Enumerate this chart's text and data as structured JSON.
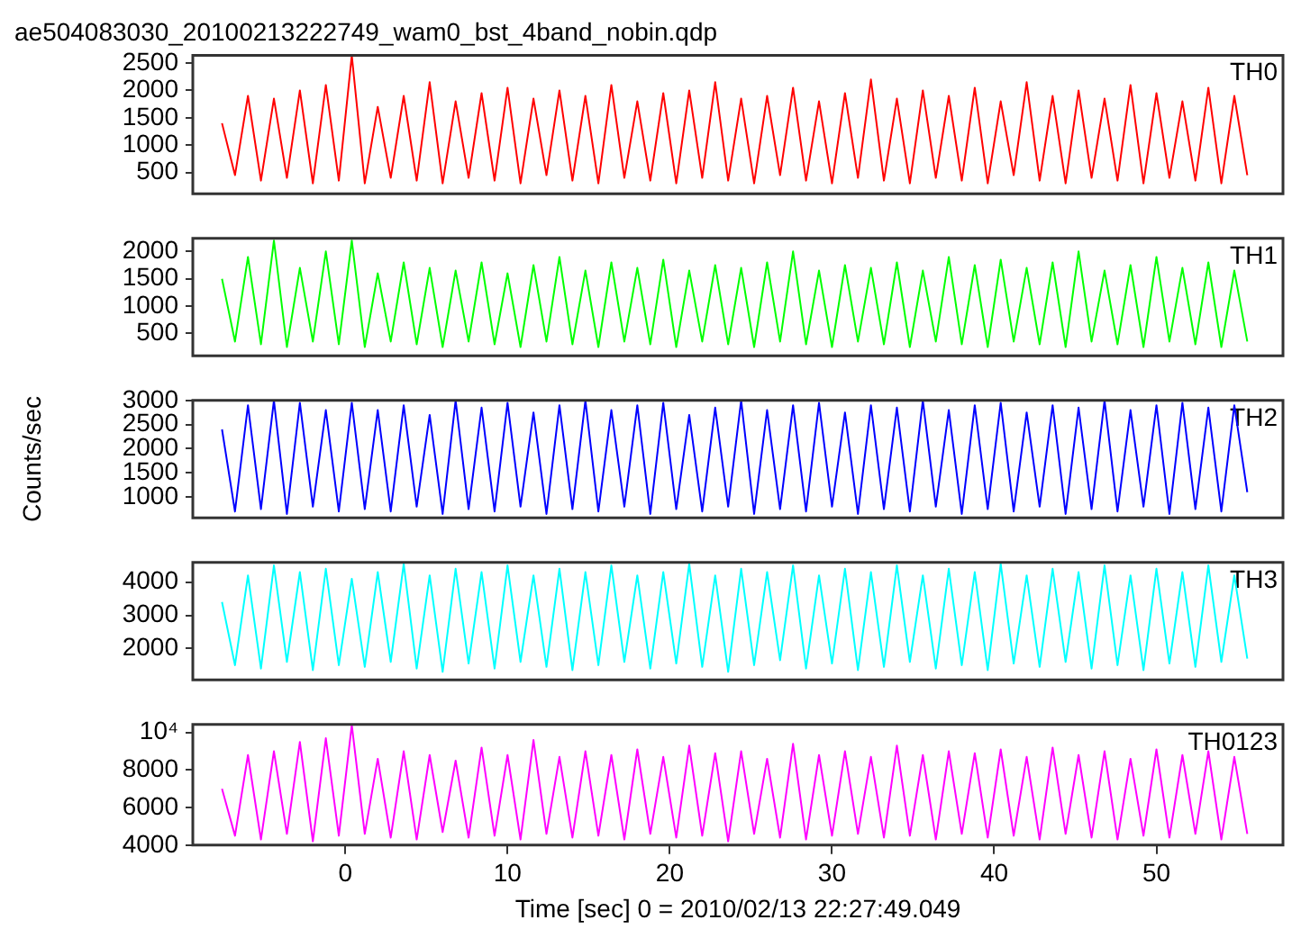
{
  "chart_data": [
    {
      "type": "line",
      "title": "ae504083030_20100213222749_wam0_bst_4band_nobin.qdp",
      "tick_labels": "y",
      "xlim": [
        -9.4,
        57.8
      ],
      "xticks": [
        0,
        10,
        20,
        30,
        40,
        50
      ],
      "ylim": [
        110,
        2640
      ],
      "yticks": [
        500,
        1000,
        1500,
        2000,
        2500
      ],
      "x": [
        -7.6,
        -6.8,
        -6,
        -5.2,
        -4.4,
        -3.6,
        -2.8,
        -2,
        -1.2,
        -0.4,
        0.4,
        1.2,
        2,
        2.8,
        3.6,
        4.4,
        5.2,
        6,
        6.8,
        7.6,
        8.4,
        9.2,
        10,
        10.8,
        11.6,
        12.4,
        13.2,
        14,
        14.8,
        15.6,
        16.4,
        17.2,
        18,
        18.8,
        19.6,
        20.4,
        21.2,
        22,
        22.8,
        23.6,
        24.4,
        25.2,
        26,
        26.8,
        27.6,
        28.4,
        29.2,
        30,
        30.8,
        31.6,
        32.4,
        33.2,
        34,
        34.8,
        35.6,
        36.4,
        37.2,
        38,
        38.8,
        39.6,
        40.4,
        41.2,
        42,
        42.8,
        43.6,
        44.4,
        45.2,
        46,
        46.8,
        47.6,
        48.4,
        49.2,
        50,
        50.8,
        51.6,
        52.4,
        53.2,
        54,
        54.8,
        55.6
      ],
      "series": [
        {
          "name": "TH0",
          "color": "#ff0000",
          "values": [
            1400,
            450,
            1900,
            350,
            1850,
            400,
            2000,
            300,
            2100,
            350,
            2640,
            300,
            1700,
            400,
            1900,
            350,
            2150,
            300,
            1800,
            400,
            1950,
            350,
            2050,
            300,
            1850,
            450,
            2000,
            350,
            1900,
            300,
            2100,
            400,
            1800,
            350,
            1950,
            300,
            2000,
            400,
            2150,
            350,
            1850,
            300,
            1900,
            450,
            2050,
            350,
            1800,
            300,
            1950,
            400,
            2200,
            350,
            1850,
            300,
            2000,
            400,
            1900,
            350,
            2050,
            300,
            1800,
            450,
            2150,
            350,
            1900,
            300,
            2000,
            400,
            1850,
            350,
            2100,
            300,
            1950,
            400,
            1800,
            350,
            2050,
            300,
            1900,
            450
          ]
        }
      ]
    },
    {
      "type": "line",
      "tick_labels": "y",
      "xlim": [
        -9.4,
        57.8
      ],
      "xticks": [
        0,
        10,
        20,
        30,
        40,
        50
      ],
      "ylim": [
        90,
        2240
      ],
      "yticks": [
        500,
        1000,
        1500,
        2000
      ],
      "x": [
        -7.6,
        -6.8,
        -6,
        -5.2,
        -4.4,
        -3.6,
        -2.8,
        -2,
        -1.2,
        -0.4,
        0.4,
        1.2,
        2,
        2.8,
        3.6,
        4.4,
        5.2,
        6,
        6.8,
        7.6,
        8.4,
        9.2,
        10,
        10.8,
        11.6,
        12.4,
        13.2,
        14,
        14.8,
        15.6,
        16.4,
        17.2,
        18,
        18.8,
        19.6,
        20.4,
        21.2,
        22,
        22.8,
        23.6,
        24.4,
        25.2,
        26,
        26.8,
        27.6,
        28.4,
        29.2,
        30,
        30.8,
        31.6,
        32.4,
        33.2,
        34,
        34.8,
        35.6,
        36.4,
        37.2,
        38,
        38.8,
        39.6,
        40.4,
        41.2,
        42,
        42.8,
        43.6,
        44.4,
        45.2,
        46,
        46.8,
        47.6,
        48.4,
        49.2,
        50,
        50.8,
        51.6,
        52.4,
        53.2,
        54,
        54.8,
        55.6
      ],
      "series": [
        {
          "name": "TH1",
          "color": "#00ff00",
          "values": [
            1500,
            350,
            1900,
            300,
            2200,
            250,
            1700,
            350,
            2000,
            300,
            2200,
            250,
            1600,
            350,
            1800,
            300,
            1700,
            250,
            1650,
            350,
            1800,
            300,
            1600,
            250,
            1750,
            350,
            1900,
            300,
            1650,
            250,
            1800,
            350,
            1700,
            300,
            1850,
            250,
            1650,
            350,
            1750,
            300,
            1700,
            250,
            1800,
            350,
            2000,
            300,
            1650,
            250,
            1750,
            350,
            1700,
            300,
            1800,
            250,
            1650,
            350,
            1900,
            300,
            1750,
            250,
            1850,
            350,
            1700,
            300,
            1800,
            250,
            2000,
            350,
            1650,
            300,
            1750,
            250,
            1900,
            350,
            1700,
            300,
            1800,
            250,
            1650,
            350
          ]
        }
      ]
    },
    {
      "type": "line",
      "tick_labels": "y",
      "ylabel": "Counts/sec",
      "xlim": [
        -9.4,
        57.8
      ],
      "xticks": [
        0,
        10,
        20,
        30,
        40,
        50
      ],
      "ylim": [
        570,
        3000
      ],
      "yticks": [
        1000,
        1500,
        2000,
        2500,
        3000
      ],
      "x": [
        -7.6,
        -6.8,
        -6,
        -5.2,
        -4.4,
        -3.6,
        -2.8,
        -2,
        -1.2,
        -0.4,
        0.4,
        1.2,
        2,
        2.8,
        3.6,
        4.4,
        5.2,
        6,
        6.8,
        7.6,
        8.4,
        9.2,
        10,
        10.8,
        11.6,
        12.4,
        13.2,
        14,
        14.8,
        15.6,
        16.4,
        17.2,
        18,
        18.8,
        19.6,
        20.4,
        21.2,
        22,
        22.8,
        23.6,
        24.4,
        25.2,
        26,
        26.8,
        27.6,
        28.4,
        29.2,
        30,
        30.8,
        31.6,
        32.4,
        33.2,
        34,
        34.8,
        35.6,
        36.4,
        37.2,
        38,
        38.8,
        39.6,
        40.4,
        41.2,
        42,
        42.8,
        43.6,
        44.4,
        45.2,
        46,
        46.8,
        47.6,
        48.4,
        49.2,
        50,
        50.8,
        51.6,
        52.4,
        53.2,
        54,
        54.8,
        55.6
      ],
      "series": [
        {
          "name": "TH2",
          "color": "#0000ff",
          "values": [
            2400,
            700,
            2900,
            750,
            3000,
            650,
            2950,
            800,
            2800,
            700,
            2950,
            750,
            2800,
            700,
            2900,
            800,
            2700,
            650,
            3000,
            750,
            2850,
            700,
            2950,
            800,
            2750,
            650,
            2900,
            750,
            3000,
            700,
            2800,
            800,
            2900,
            650,
            2950,
            750,
            2700,
            700,
            2850,
            800,
            3000,
            650,
            2800,
            750,
            2900,
            700,
            2950,
            800,
            2750,
            650,
            2900,
            750,
            2850,
            700,
            3000,
            800,
            2800,
            650,
            2900,
            750,
            2950,
            700,
            2750,
            800,
            2900,
            650,
            2850,
            750,
            3000,
            700,
            2800,
            800,
            2900,
            650,
            2950,
            750,
            2850,
            700,
            2900,
            1100
          ]
        }
      ]
    },
    {
      "type": "line",
      "tick_labels": "y",
      "xlim": [
        -9.4,
        57.8
      ],
      "xticks": [
        0,
        10,
        20,
        30,
        40,
        50
      ],
      "ylim": [
        1060,
        4590
      ],
      "yticks": [
        2000,
        3000,
        4000
      ],
      "x": [
        -7.6,
        -6.8,
        -6,
        -5.2,
        -4.4,
        -3.6,
        -2.8,
        -2,
        -1.2,
        -0.4,
        0.4,
        1.2,
        2,
        2.8,
        3.6,
        4.4,
        5.2,
        6,
        6.8,
        7.6,
        8.4,
        9.2,
        10,
        10.8,
        11.6,
        12.4,
        13.2,
        14,
        14.8,
        15.6,
        16.4,
        17.2,
        18,
        18.8,
        19.6,
        20.4,
        21.2,
        22,
        22.8,
        23.6,
        24.4,
        25.2,
        26,
        26.8,
        27.6,
        28.4,
        29.2,
        30,
        30.8,
        31.6,
        32.4,
        33.2,
        34,
        34.8,
        35.6,
        36.4,
        37.2,
        38,
        38.8,
        39.6,
        40.4,
        41.2,
        42,
        42.8,
        43.6,
        44.4,
        45.2,
        46,
        46.8,
        47.6,
        48.4,
        49.2,
        50,
        50.8,
        51.6,
        52.4,
        53.2,
        54,
        54.8,
        55.6
      ],
      "series": [
        {
          "name": "TH3",
          "color": "#00ffff",
          "values": [
            3400,
            1500,
            4200,
            1400,
            4500,
            1600,
            4300,
            1350,
            4400,
            1500,
            4100,
            1450,
            4300,
            1600,
            4550,
            1400,
            4200,
            1300,
            4400,
            1550,
            4300,
            1400,
            4500,
            1600,
            4200,
            1450,
            4400,
            1350,
            4300,
            1500,
            4500,
            1600,
            4200,
            1400,
            4300,
            1550,
            4550,
            1450,
            4200,
            1300,
            4400,
            1500,
            4300,
            1650,
            4500,
            1400,
            4200,
            1550,
            4400,
            1350,
            4300,
            1450,
            4500,
            1600,
            4200,
            1400,
            4400,
            1500,
            4300,
            1350,
            4550,
            1550,
            4200,
            1450,
            4400,
            1600,
            4300,
            1400,
            4500,
            1500,
            4200,
            1350,
            4400,
            1550,
            4300,
            1450,
            4500,
            1600,
            4200,
            1700
          ]
        }
      ]
    },
    {
      "type": "line",
      "xlabel": "Time [sec] 0 = 2010/02/13 22:27:49.049",
      "xlim": [
        -9.4,
        57.8
      ],
      "xticks": [
        0,
        10,
        20,
        30,
        40,
        50
      ],
      "ylim": [
        4000,
        10430
      ],
      "yticks": [
        4000,
        6000,
        8000,
        {
          "value": 10000,
          "label": "10⁴"
        }
      ],
      "x": [
        -7.6,
        -6.8,
        -6,
        -5.2,
        -4.4,
        -3.6,
        -2.8,
        -2,
        -1.2,
        -0.4,
        0.4,
        1.2,
        2,
        2.8,
        3.6,
        4.4,
        5.2,
        6,
        6.8,
        7.6,
        8.4,
        9.2,
        10,
        10.8,
        11.6,
        12.4,
        13.2,
        14,
        14.8,
        15.6,
        16.4,
        17.2,
        18,
        18.8,
        19.6,
        20.4,
        21.2,
        22,
        22.8,
        23.6,
        24.4,
        25.2,
        26,
        26.8,
        27.6,
        28.4,
        29.2,
        30,
        30.8,
        31.6,
        32.4,
        33.2,
        34,
        34.8,
        35.6,
        36.4,
        37.2,
        38,
        38.8,
        39.6,
        40.4,
        41.2,
        42,
        42.8,
        43.6,
        44.4,
        45.2,
        46,
        46.8,
        47.6,
        48.4,
        49.2,
        50,
        50.8,
        51.6,
        52.4,
        53.2,
        54,
        54.8,
        55.6
      ],
      "series": [
        {
          "name": "TH0123",
          "color": "#ff00ff",
          "values": [
            7000,
            4500,
            8800,
            4300,
            9000,
            4600,
            9500,
            4200,
            9700,
            4500,
            10400,
            4600,
            8600,
            4400,
            9000,
            4300,
            8800,
            4700,
            8500,
            4400,
            9200,
            4500,
            8800,
            4300,
            9600,
            4600,
            8700,
            4400,
            9000,
            4500,
            8800,
            4300,
            9100,
            4600,
            8700,
            4400,
            9300,
            4500,
            8900,
            4200,
            9000,
            4600,
            8600,
            4400,
            9400,
            4300,
            8800,
            4500,
            9000,
            4600,
            8700,
            4400,
            9300,
            4500,
            8800,
            4300,
            9000,
            4600,
            8900,
            4400,
            9100,
            4500,
            8700,
            4300,
            9200,
            4600,
            8800,
            4400,
            9000,
            4300,
            8600,
            4500,
            9100,
            4400,
            8800,
            4600,
            9000,
            4300,
            8700,
            4600
          ]
        }
      ]
    }
  ]
}
